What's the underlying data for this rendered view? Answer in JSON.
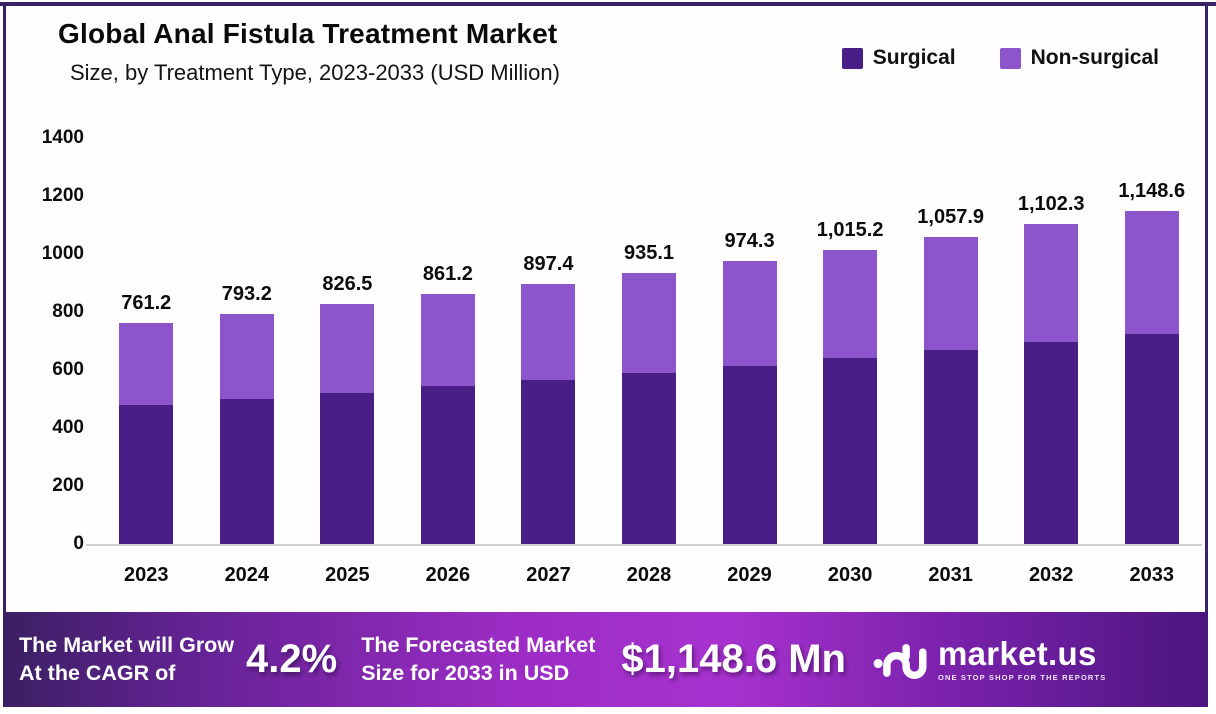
{
  "header": {
    "title": "Global Anal Fistula Treatment Market",
    "subtitle": "Size, by Treatment Type, 2023-2033 (USD Million)"
  },
  "legend": [
    {
      "label": "Surgical",
      "color": "#4A1E87"
    },
    {
      "label": "Non-surgical",
      "color": "#8C55CC"
    }
  ],
  "chart_data": {
    "type": "bar",
    "stacked": true,
    "title": "Global Anal Fistula Treatment Market Size, by Treatment Type, 2023-2033 (USD Million)",
    "categories": [
      "2023",
      "2024",
      "2025",
      "2026",
      "2027",
      "2028",
      "2029",
      "2030",
      "2031",
      "2032",
      "2033"
    ],
    "series": [
      {
        "name": "Surgical",
        "color": "#4A1E87",
        "values": [
          480.2,
          500.4,
          521.4,
          543.3,
          566.1,
          589.9,
          614.6,
          640.5,
          667.4,
          695.4,
          724.6
        ]
      },
      {
        "name": "Non-surgical",
        "color": "#8C55CC",
        "values": [
          281.0,
          292.8,
          305.1,
          317.9,
          331.3,
          345.2,
          359.7,
          374.7,
          390.5,
          406.9,
          424.0
        ]
      }
    ],
    "totals": [
      761.2,
      793.2,
      826.5,
      861.2,
      897.4,
      935.1,
      974.3,
      1015.2,
      1057.9,
      1102.3,
      1148.6
    ],
    "total_labels": [
      "761.2",
      "793.2",
      "826.5",
      "861.2",
      "897.4",
      "935.1",
      "974.3",
      "1,015.2",
      "1,057.9",
      "1,102.3",
      "1,148.6"
    ],
    "ylim": [
      0,
      1400
    ],
    "yticks": [
      0,
      200,
      400,
      600,
      800,
      1000,
      1200,
      1400
    ],
    "grid": false,
    "legend_position": "top-right"
  },
  "footer": {
    "cagr_line1": "The Market will Grow",
    "cagr_line2": "At the CAGR of",
    "cagr_value": "4.2%",
    "forecast_line1": "The Forecasted Market",
    "forecast_line2": "Size for 2033 in USD",
    "forecast_value": "$1,148.6 Mn",
    "brand_name": "market.us",
    "brand_tagline": "ONE STOP SHOP FOR THE REPORTS"
  },
  "colors": {
    "bar_surgical": "#4A1E87",
    "bar_non_surgical": "#8C55CC",
    "frame_border": "#3A2266",
    "footer_gradient_start": "#3B1F63",
    "footer_gradient_mid": "#A832CF",
    "footer_gradient_end": "#4C157E",
    "axis_line": "#CFCFD6",
    "text": "#0D0D0D",
    "footer_text": "#FFFFFF"
  }
}
